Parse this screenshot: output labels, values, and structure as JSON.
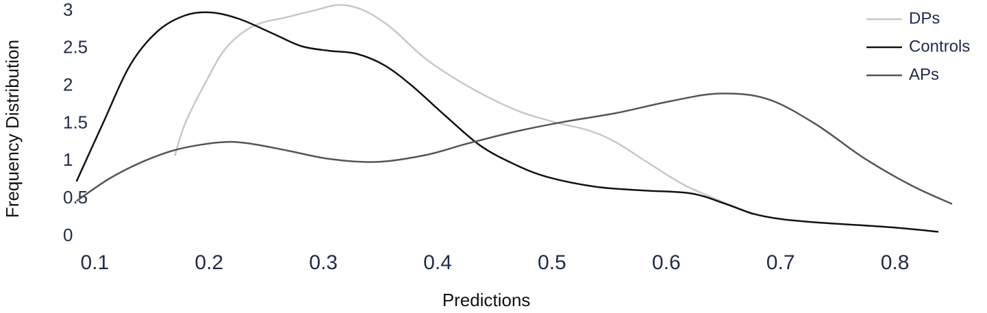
{
  "chart_data": {
    "type": "line",
    "x_label": "Predictions",
    "y_label": "Frequency Distribution",
    "xlim": [
      0.083,
      0.853
    ],
    "ylim": [
      0,
      3.1
    ],
    "xticks": [
      0.1,
      0.2,
      0.3,
      0.4,
      0.5,
      0.6,
      0.7,
      0.8
    ],
    "yticks": [
      0,
      0.5,
      1,
      1.5,
      2,
      2.5,
      3
    ],
    "grid": false,
    "legend": "top-right",
    "series": [
      {
        "name": "DPs",
        "color": "#c8c8c8",
        "x": [
          0.17,
          0.179,
          0.197,
          0.215,
          0.239,
          0.269,
          0.293,
          0.314,
          0.335,
          0.359,
          0.389,
          0.425,
          0.467,
          0.502,
          0.532,
          0.556,
          0.586,
          0.616,
          0.646,
          0.676
        ],
        "values": [
          1.07,
          1.5,
          2.05,
          2.51,
          2.8,
          2.92,
          3.01,
          3.08,
          3.01,
          2.78,
          2.37,
          2.01,
          1.69,
          1.52,
          1.41,
          1.25,
          0.96,
          0.68,
          0.48,
          0.29
        ]
      },
      {
        "name": "Controls",
        "color": "#111111",
        "x": [
          0.084,
          0.107,
          0.131,
          0.155,
          0.179,
          0.202,
          0.227,
          0.257,
          0.281,
          0.305,
          0.329,
          0.353,
          0.377,
          0.407,
          0.437,
          0.467,
          0.496,
          0.538,
          0.58,
          0.622,
          0.652,
          0.676,
          0.7,
          0.736,
          0.796,
          0.838
        ],
        "values": [
          0.73,
          1.5,
          2.28,
          2.73,
          2.94,
          2.98,
          2.89,
          2.69,
          2.53,
          2.47,
          2.43,
          2.28,
          2.01,
          1.6,
          1.21,
          0.96,
          0.79,
          0.66,
          0.61,
          0.57,
          0.43,
          0.3,
          0.23,
          0.18,
          0.12,
          0.06
        ]
      },
      {
        "name": "APs",
        "color": "#555555",
        "x": [
          0.084,
          0.113,
          0.143,
          0.173,
          0.209,
          0.233,
          0.269,
          0.305,
          0.347,
          0.389,
          0.425,
          0.467,
          0.509,
          0.556,
          0.604,
          0.646,
          0.688,
          0.73,
          0.772,
          0.814,
          0.85
        ],
        "values": [
          0.47,
          0.77,
          1.0,
          1.16,
          1.25,
          1.24,
          1.14,
          1.03,
          0.99,
          1.08,
          1.23,
          1.39,
          1.52,
          1.64,
          1.8,
          1.9,
          1.83,
          1.5,
          1.05,
          0.68,
          0.43
        ]
      }
    ]
  }
}
